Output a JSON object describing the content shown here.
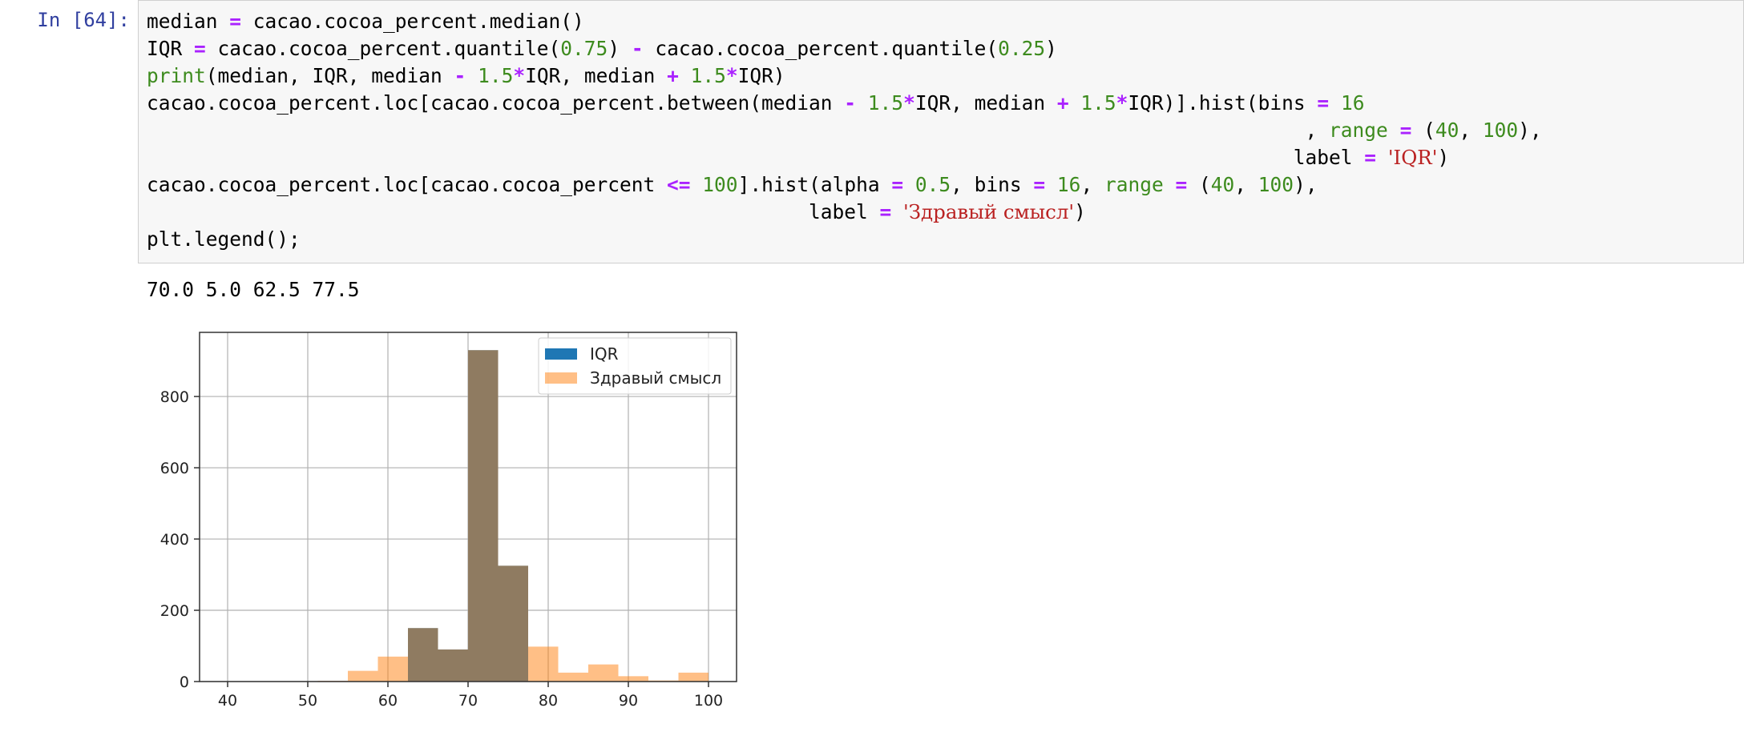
{
  "cell": {
    "prompt": "In [64]:",
    "code_lines": [
      "median = cacao.cocoa_percent.median()",
      "IQR = cacao.cocoa_percent.quantile(0.75) - cacao.cocoa_percent.quantile(0.25)",
      "print(median, IQR, median - 1.5*IQR, median + 1.5*IQR)",
      "cacao.cocoa_percent.loc[cacao.cocoa_percent.between(median - 1.5*IQR, median + 1.5*IQR)].hist(bins = 16",
      "                                                                                                  , range = (40, 100),",
      "                                                                                                 label = 'IQR')",
      "cacao.cocoa_percent.loc[cacao.cocoa_percent <= 100].hist(alpha = 0.5, bins = 16, range = (40, 100),",
      "                                                        label = 'Здравый смысл')",
      "plt.legend();"
    ]
  },
  "output": {
    "text": "70.0 5.0 62.5 77.5"
  },
  "colors": {
    "prompt": "#303f9f",
    "keyword": "#aa22ff",
    "number": "#3d8b1e",
    "string": "#ba2121",
    "iqr_bar": "#1f77b4",
    "sense_bar": "#ff7f0e",
    "overlap_bar": "#8b775b"
  },
  "chart_data": {
    "type": "bar",
    "x_axis": {
      "range": [
        40,
        100
      ],
      "ticks": [
        40,
        50,
        60,
        70,
        80,
        90,
        100
      ],
      "tick_labels": [
        "40",
        "50",
        "60",
        "70",
        "80",
        "90",
        "100"
      ]
    },
    "y_axis": {
      "range": [
        0,
        980
      ],
      "ticks": [
        0,
        200,
        400,
        600,
        800
      ],
      "tick_labels": [
        "0",
        "200",
        "400",
        "600",
        "800"
      ]
    },
    "grid": true,
    "legend": {
      "position": "top-right",
      "entries": [
        "IQR",
        "Здравый смысл"
      ]
    },
    "bin_edges": [
      40,
      43.75,
      47.5,
      51.25,
      55,
      58.75,
      62.5,
      66.25,
      70,
      73.75,
      77.5,
      81.25,
      85,
      88.75,
      92.5,
      96.25,
      100
    ],
    "series": [
      {
        "name": "IQR",
        "values": [
          0,
          0,
          0,
          0,
          0,
          0,
          150,
          90,
          930,
          325,
          0,
          0,
          0,
          0,
          0,
          0
        ]
      },
      {
        "name": "Здравый смысл",
        "values": [
          0,
          0,
          0,
          2,
          30,
          70,
          150,
          90,
          930,
          325,
          98,
          25,
          48,
          15,
          3,
          25
        ]
      }
    ]
  }
}
